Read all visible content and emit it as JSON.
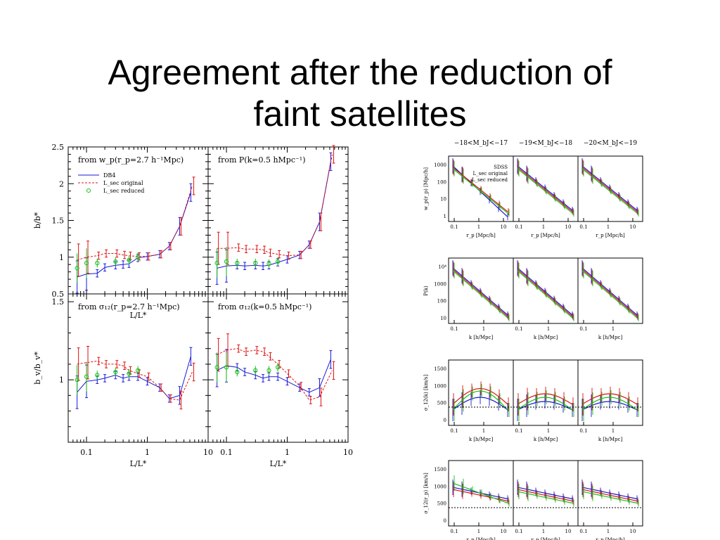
{
  "slide": {
    "title_line1": "Agreement after the reduction of",
    "title_line2": "faint satellites"
  },
  "colors": {
    "db4": "#1a1ad6",
    "original": "#e01010",
    "reduced": "#18c018",
    "sdss": "#1a1ad6"
  },
  "chart_data": [
    {
      "type": "line",
      "panel": "left-top-left",
      "annotation": "from w_p(r_p=2.7 h⁻¹Mpc)",
      "ylabel": "b/b*",
      "xlabel": "L/L*",
      "xscale": "log",
      "xlim": [
        0.05,
        10
      ],
      "ylim": [
        0.5,
        2.5
      ],
      "xticks": [
        "0.1",
        "1",
        "10"
      ],
      "yticks": [
        "0.5",
        "1",
        "1.5",
        "2",
        "2.5"
      ],
      "legend": [
        "DB4",
        "L_sec original",
        "L_sec reduced"
      ],
      "series": [
        {
          "name": "DB4",
          "style": "line",
          "x": [
            0.07,
            0.1,
            0.15,
            0.2,
            0.3,
            0.4,
            0.5,
            0.7,
            1.0,
            1.6,
            2.3,
            3.4,
            5.2
          ],
          "y": [
            0.73,
            0.77,
            0.78,
            0.86,
            0.89,
            0.9,
            0.91,
            0.99,
            1.01,
            1.04,
            1.15,
            1.42,
            1.88
          ]
        },
        {
          "name": "L_sec original",
          "style": "dashed",
          "x": [
            0.07,
            0.1,
            0.15,
            0.2,
            0.3,
            0.4,
            0.5,
            0.7,
            1.0,
            1.6,
            2.3,
            3.4,
            5.5
          ],
          "y": [
            0.96,
            1.0,
            1.02,
            1.05,
            1.05,
            1.03,
            1.02,
            1.01,
            1.01,
            1.04,
            1.15,
            1.42,
            1.97
          ]
        },
        {
          "name": "L_sec reduced",
          "style": "points",
          "x": [
            0.07,
            0.1,
            0.15,
            0.3,
            0.5,
            0.7
          ],
          "y": [
            0.85,
            0.92,
            0.92,
            0.94,
            0.96,
            1.0
          ]
        }
      ]
    },
    {
      "type": "line",
      "panel": "left-top-right",
      "annotation": "from P(k=0.5 hMpc⁻¹)",
      "xscale": "log",
      "xlim": [
        0.05,
        10
      ],
      "ylim": [
        0.5,
        2.5
      ],
      "xticks": [
        "0.1",
        "1",
        "10"
      ],
      "series": [
        {
          "name": "DB4",
          "style": "line",
          "x": [
            0.07,
            0.1,
            0.15,
            0.2,
            0.3,
            0.4,
            0.5,
            0.7,
            1.0,
            1.6,
            2.3,
            3.4,
            5.2
          ],
          "y": [
            0.85,
            0.88,
            0.89,
            0.88,
            0.89,
            0.88,
            0.89,
            0.93,
            0.97,
            1.03,
            1.17,
            1.48,
            2.3
          ]
        },
        {
          "name": "L_sec original",
          "style": "dashed",
          "x": [
            0.07,
            0.1,
            0.15,
            0.2,
            0.3,
            0.4,
            0.5,
            0.7,
            1.0,
            1.6,
            2.3,
            3.4,
            5.5
          ],
          "y": [
            1.12,
            1.12,
            1.13,
            1.11,
            1.11,
            1.1,
            1.06,
            1.04,
            1.02,
            1.03,
            1.17,
            1.48,
            2.4
          ]
        },
        {
          "name": "L_sec reduced",
          "style": "points",
          "x": [
            0.07,
            0.1,
            0.15,
            0.3,
            0.5,
            0.7
          ],
          "y": [
            0.92,
            0.94,
            0.92,
            0.92,
            0.91,
            0.94
          ]
        }
      ]
    },
    {
      "type": "line",
      "panel": "left-bottom-left",
      "annotation": "from σ₁₂(r_p=2.7 h⁻¹Mpc)",
      "ylabel": "b_v/b_v*",
      "xlabel": "L/L*",
      "xscale": "log",
      "xlim": [
        0.05,
        10
      ],
      "ylim": [
        0.6,
        1.55
      ],
      "xticks": [
        "0.1",
        "1",
        "10"
      ],
      "yticks": [
        "1",
        "1.5"
      ],
      "series": [
        {
          "name": "DB4",
          "style": "line",
          "x": [
            0.07,
            0.1,
            0.15,
            0.2,
            0.3,
            0.4,
            0.5,
            0.7,
            1.0,
            1.6,
            2.3,
            3.4,
            5.2
          ],
          "y": [
            0.92,
            0.99,
            1.0,
            1.01,
            1.03,
            1.01,
            1.02,
            1.02,
            0.99,
            0.95,
            0.88,
            0.9,
            1.15
          ]
        },
        {
          "name": "L_sec original",
          "style": "dashed",
          "x": [
            0.07,
            0.1,
            0.15,
            0.2,
            0.3,
            0.4,
            0.5,
            0.7,
            1.0,
            1.6,
            2.3,
            3.4,
            5.5
          ],
          "y": [
            1.1,
            1.11,
            1.12,
            1.1,
            1.1,
            1.09,
            1.06,
            1.04,
            1.02,
            0.95,
            0.88,
            0.87,
            1.05
          ]
        },
        {
          "name": "L_sec reduced",
          "style": "points",
          "x": [
            0.07,
            0.1,
            0.15,
            0.3,
            0.5,
            0.7
          ],
          "y": [
            1.0,
            1.02,
            1.03,
            1.05,
            1.04,
            1.06
          ]
        }
      ]
    },
    {
      "type": "line",
      "panel": "left-bottom-right",
      "annotation": "from σ₁₂(k=0.5 hMpc⁻¹)",
      "xlabel": "L/L*",
      "xscale": "log",
      "xlim": [
        0.05,
        10
      ],
      "ylim": [
        0.6,
        1.55
      ],
      "xticks": [
        "0.1",
        "1",
        "10"
      ],
      "series": [
        {
          "name": "DB4",
          "style": "line",
          "x": [
            0.07,
            0.1,
            0.15,
            0.2,
            0.3,
            0.4,
            0.5,
            0.7,
            1.0,
            1.6,
            2.3,
            3.4,
            5.2
          ],
          "y": [
            1.06,
            1.09,
            1.08,
            1.05,
            1.03,
            1.01,
            1.02,
            1.02,
            0.99,
            0.95,
            0.92,
            0.95,
            1.13
          ]
        },
        {
          "name": "L_sec original",
          "style": "dashed",
          "x": [
            0.07,
            0.1,
            0.15,
            0.2,
            0.3,
            0.4,
            0.5,
            0.7,
            1.0,
            1.6,
            2.3,
            3.4,
            5.5
          ],
          "y": [
            1.16,
            1.19,
            1.2,
            1.18,
            1.19,
            1.18,
            1.15,
            1.1,
            1.04,
            0.96,
            0.87,
            0.89,
            1.06
          ]
        },
        {
          "name": "L_sec reduced",
          "style": "points",
          "x": [
            0.07,
            0.1,
            0.15,
            0.3,
            0.5,
            0.7
          ],
          "y": [
            1.08,
            1.08,
            1.05,
            1.06,
            1.06,
            1.08
          ]
        }
      ]
    },
    {
      "type": "line",
      "panel": "right-grid",
      "column_labels": [
        "−18<M_bJ<−17",
        "−19<M_bJ<−18",
        "−20<M_bJ<−19"
      ],
      "legend": [
        "SDSS",
        "L_sec original",
        "L_sec reduced"
      ],
      "rows": [
        {
          "ylabel": "w_p(r_p) [Mpc/h]",
          "xlabels": [
            "r_p [Mpc/h]",
            "r_p [Mpc/h]",
            "r_p [Mpc/h]"
          ],
          "yticks": [
            "1000",
            "100",
            "10",
            "1"
          ],
          "xticks": [
            "0.1",
            "1",
            "10"
          ]
        },
        {
          "ylabel": "P(k)",
          "xlabels": [
            "k [h/Mpc]",
            "k [h/Mpc]",
            "k [h/Mpc]"
          ],
          "yticks": [
            "10⁴",
            "1000",
            "100",
            "10"
          ],
          "xticks": [
            "0.1",
            "1"
          ]
        },
        {
          "ylabel": "σ_12(k) [km/s]",
          "xlabels": [
            "k [h/Mpc]",
            "k [h/Mpc]",
            "k [h/Mpc]"
          ],
          "yticks": [
            "1500",
            "1000",
            "500",
            "0"
          ],
          "xticks": [
            "0.1",
            "1"
          ]
        },
        {
          "ylabel": "σ_12(r_p) [km/s]",
          "xlabels": [
            "r_p [Mpc/h]",
            "r_p [Mpc/h]",
            "r_p [Mpc/h]"
          ],
          "yticks": [
            "1500",
            "1000",
            "500",
            "0"
          ],
          "xticks": [
            "0.1",
            "1",
            "10"
          ]
        }
      ]
    }
  ]
}
